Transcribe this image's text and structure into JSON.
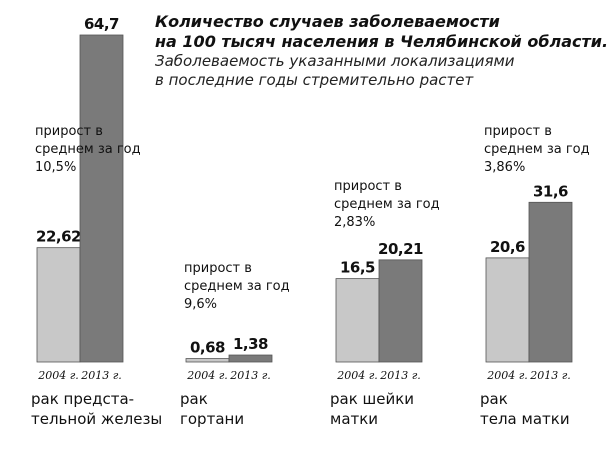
{
  "header": {
    "title_lines": [
      "Количество случаев заболеваемости",
      "на 100 тысяч населения в Челябинской области."
    ],
    "subtitle_lines": [
      "Заболеваемость указанными локализациями",
      "в последние годы стремительно растет"
    ]
  },
  "colors": {
    "bar_2004": "#c8c8c8",
    "bar_2013": "#7a7a7a",
    "bar_outline": "#555555",
    "baseline": "#777777",
    "text": "#111111"
  },
  "chart_data": {
    "type": "bar",
    "title": "Количество случаев заболеваемости на 100 тысяч населения в Челябинской области.",
    "subtitle": "Заболеваемость указанными локализациями в последние годы стремительно растет",
    "series_labels": [
      "2004 г.",
      "2013 г."
    ],
    "ylim": [
      0,
      64.7
    ],
    "grid": false,
    "legend": "none",
    "groups": [
      {
        "label": [
          "рак предста-",
          "тельной железы"
        ],
        "values": [
          22.62,
          64.7
        ],
        "value_labels": [
          "22,62",
          "64,7"
        ],
        "growth": [
          "прирост в",
          "среднем за год",
          "10,5%"
        ]
      },
      {
        "label": [
          "рак",
          "гортани"
        ],
        "values": [
          0.68,
          1.38
        ],
        "value_labels": [
          "0,68",
          "1,38"
        ],
        "growth": [
          "прирост в",
          "среднем за год",
          "9,6%"
        ]
      },
      {
        "label": [
          "рак шейки",
          "матки"
        ],
        "values": [
          16.5,
          20.21
        ],
        "value_labels": [
          "16,5",
          "20,21"
        ],
        "growth": [
          "прирост в",
          "среднем за год",
          "2,83%"
        ]
      },
      {
        "label": [
          "рак",
          "тела матки"
        ],
        "values": [
          20.6,
          31.6
        ],
        "value_labels": [
          "20,6",
          "31,6"
        ],
        "growth": [
          "прирост в",
          "среднем за год",
          "3,86%"
        ]
      }
    ]
  }
}
